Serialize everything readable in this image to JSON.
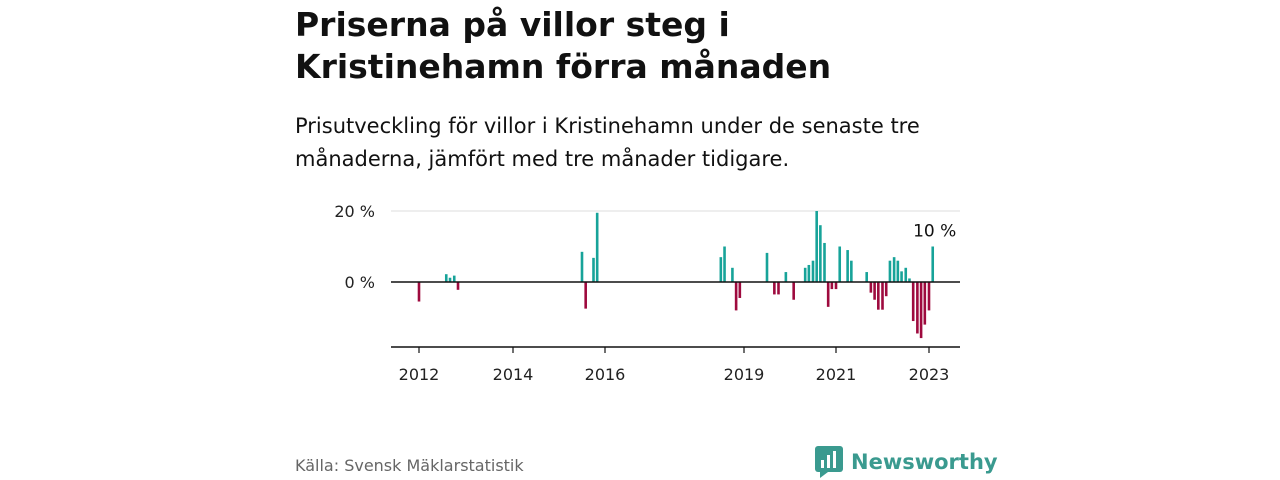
{
  "header": {
    "title": "Priserna på villor steg i Kristinehamn förra månaden",
    "subtitle": "Prisutveckling för villor i Kristinehamn under de senaste tre månaderna, jämfört med tre månader tidigare."
  },
  "footer": {
    "source": "Källa: Svensk Mäklarstatistik",
    "brand": "Newsworthy",
    "brand_icon": "bar-chart-speech-bubble-icon"
  },
  "colors": {
    "positive": "#17a399",
    "negative": "#9e0a3e",
    "brand": "#3a9a8f"
  },
  "chart_data": {
    "type": "bar",
    "y_tick_labels": [
      "20 %",
      "0 %"
    ],
    "y_ticks": [
      20,
      0
    ],
    "ylim": [
      -18,
      21
    ],
    "x_tick_labels": [
      "2012",
      "2014",
      "2016",
      "2019",
      "2021",
      "2023"
    ],
    "x_ticks": [
      2012.0,
      2014.0,
      2016.0,
      2019.0,
      2021.0,
      2023.0
    ],
    "xlim": [
      2011.4,
      2023.7
    ],
    "annotation": "10 %",
    "grid": true,
    "series": [
      {
        "points": [
          {
            "x": 2012.0,
            "y": -5.5
          },
          {
            "x": 2012.58,
            "y": 2.2
          },
          {
            "x": 2012.66,
            "y": 1.2
          },
          {
            "x": 2012.75,
            "y": 1.8
          },
          {
            "x": 2012.83,
            "y": -2.2
          },
          {
            "x": 2015.5,
            "y": 8.5
          },
          {
            "x": 2015.58,
            "y": -7.5
          },
          {
            "x": 2015.75,
            "y": 6.8
          },
          {
            "x": 2015.83,
            "y": 19.5
          },
          {
            "x": 2018.5,
            "y": 7.0
          },
          {
            "x": 2018.58,
            "y": 10.0
          },
          {
            "x": 2018.75,
            "y": 4.0
          },
          {
            "x": 2018.83,
            "y": -8.0
          },
          {
            "x": 2018.91,
            "y": -4.5
          },
          {
            "x": 2019.5,
            "y": 8.2
          },
          {
            "x": 2019.66,
            "y": -3.5
          },
          {
            "x": 2019.75,
            "y": -3.5
          },
          {
            "x": 2019.91,
            "y": 2.8
          },
          {
            "x": 2020.08,
            "y": -5.0
          },
          {
            "x": 2020.33,
            "y": 4.0
          },
          {
            "x": 2020.41,
            "y": 4.8
          },
          {
            "x": 2020.5,
            "y": 6.0
          },
          {
            "x": 2020.58,
            "y": 20.0
          },
          {
            "x": 2020.66,
            "y": 16.0
          },
          {
            "x": 2020.75,
            "y": 11.0
          },
          {
            "x": 2020.83,
            "y": -7.0
          },
          {
            "x": 2020.91,
            "y": -2.0
          },
          {
            "x": 2021.0,
            "y": -2.0
          },
          {
            "x": 2021.08,
            "y": 10.0
          },
          {
            "x": 2021.25,
            "y": 9.0
          },
          {
            "x": 2021.33,
            "y": 6.0
          },
          {
            "x": 2021.66,
            "y": 2.8
          },
          {
            "x": 2021.75,
            "y": -3.0
          },
          {
            "x": 2021.83,
            "y": -5.0
          },
          {
            "x": 2021.91,
            "y": -7.8
          },
          {
            "x": 2022.0,
            "y": -7.8
          },
          {
            "x": 2022.08,
            "y": -4.0
          },
          {
            "x": 2022.16,
            "y": 6.0
          },
          {
            "x": 2022.25,
            "y": 7.0
          },
          {
            "x": 2022.33,
            "y": 6.0
          },
          {
            "x": 2022.41,
            "y": 3.0
          },
          {
            "x": 2022.5,
            "y": 4.0
          },
          {
            "x": 2022.58,
            "y": 1.0
          },
          {
            "x": 2022.66,
            "y": -11.0
          },
          {
            "x": 2022.75,
            "y": -14.5
          },
          {
            "x": 2022.83,
            "y": -15.8
          },
          {
            "x": 2022.91,
            "y": -12.0
          },
          {
            "x": 2023.0,
            "y": -8.0
          },
          {
            "x": 2023.08,
            "y": 10.0
          }
        ]
      }
    ]
  }
}
